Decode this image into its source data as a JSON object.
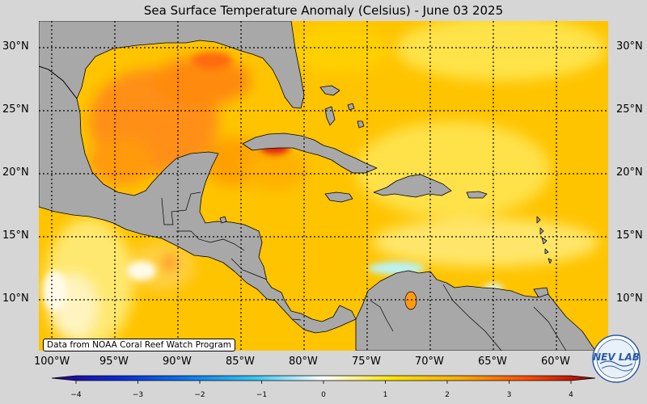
{
  "title": "Sea Surface Temperature Anomaly (Celsius) - June 03 2025",
  "credit": "Data from NOAA Coral Reef Watch Program",
  "lat_labels": [
    "30°N",
    "25°N",
    "20°N",
    "15°N",
    "10°N"
  ],
  "lon_labels": [
    "100°W",
    "95°W",
    "90°W",
    "85°W",
    "80°W",
    "75°W",
    "70°W",
    "65°W",
    "60°W"
  ],
  "colorbar": {
    "ticks": [
      "−4",
      "−3",
      "−2",
      "−1",
      "0",
      "1",
      "2",
      "3",
      "4"
    ],
    "stops": [
      "#2a0090",
      "#0a2cd8",
      "#0a7af0",
      "#35c8f5",
      "#ffffff",
      "#ffe500",
      "#ffad00",
      "#ff4a00",
      "#a00000"
    ]
  },
  "logo_text": "NEV LAB",
  "colors": {
    "land": "#a8a8a8",
    "ocean_base": "#ffc800",
    "warm": "#ff7a10",
    "hot": "#e82010",
    "cool": "#a8f0f8",
    "frame": "#d6d6d6"
  }
}
